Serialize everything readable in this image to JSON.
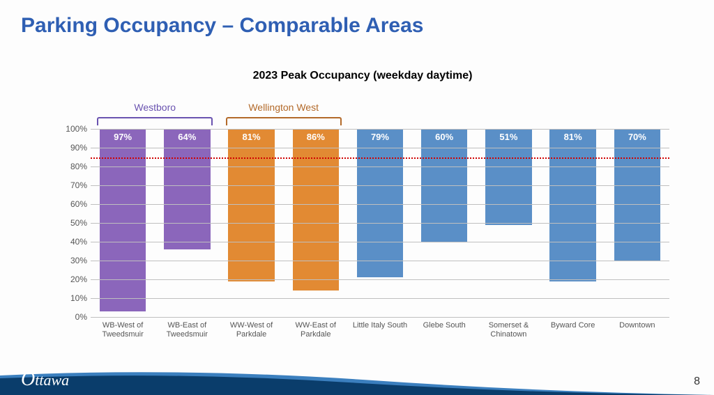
{
  "slide": {
    "title": "Parking Occupancy – Comparable Areas",
    "title_color": "#2f5fb3",
    "title_fontsize": 30
  },
  "chart": {
    "type": "bar",
    "title": "2023 Peak Occupancy (weekday daytime)",
    "title_fontsize": 16,
    "title_color": "#000000",
    "ylim": [
      0,
      100
    ],
    "ytick_step": 10,
    "y_suffix": "%",
    "grid_color": "#bfbfbf",
    "x_label_fontsize": 11,
    "bar_width_pct": 72,
    "bar_value_color": "#ffffff",
    "bar_value_fontsize": 13,
    "reference_line": {
      "value": 85,
      "color": "#d00000",
      "style": "dotted"
    },
    "groups": [
      {
        "label": "Westboro",
        "color": "#6a53b0",
        "span": [
          0,
          1
        ]
      },
      {
        "label": "Wellington West",
        "color": "#b36a2a",
        "span": [
          2,
          3
        ]
      }
    ],
    "bars": [
      {
        "label": "WB-West of Tweedsmuir",
        "value": 97,
        "color": "#8b66bb"
      },
      {
        "label": "WB-East of Tweedsmuir",
        "value": 64,
        "color": "#8b66bb"
      },
      {
        "label": "WW-West of Parkdale",
        "value": 81,
        "color": "#e28a33"
      },
      {
        "label": "WW-East of Parkdale",
        "value": 86,
        "color": "#e28a33"
      },
      {
        "label": "Little Italy South",
        "value": 79,
        "color": "#5a8fc7"
      },
      {
        "label": "Glebe South",
        "value": 60,
        "color": "#5a8fc7"
      },
      {
        "label": "Somerset & Chinatown",
        "value": 51,
        "color": "#5a8fc7"
      },
      {
        "label": "Byward Core",
        "value": 81,
        "color": "#5a8fc7"
      },
      {
        "label": "Downtown",
        "value": 70,
        "color": "#5a8fc7"
      }
    ]
  },
  "footer": {
    "band_color_dark": "#0a3d6b",
    "band_color_light": "#3b7fbe",
    "logo_text": "Ottawa",
    "page_number": "8"
  }
}
